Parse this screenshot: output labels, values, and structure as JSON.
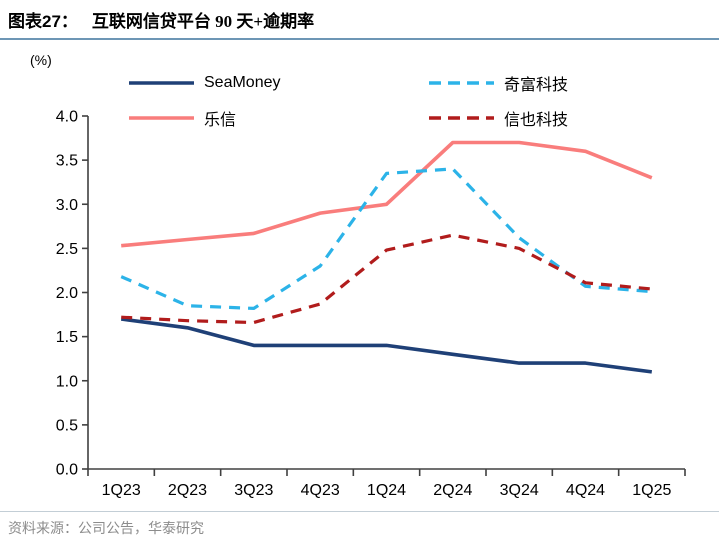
{
  "header": {
    "figure_label": "图表27：",
    "title": "互联网信贷平台 90 天+逾期率"
  },
  "chart_data": {
    "type": "line",
    "title": "互联网信贷平台 90 天+逾期率",
    "unit_label": "(%)",
    "xlabel": "",
    "ylabel": "(%)",
    "categories": [
      "1Q23",
      "2Q23",
      "3Q23",
      "4Q23",
      "1Q24",
      "2Q24",
      "3Q24",
      "4Q24",
      "1Q25"
    ],
    "series": [
      {
        "name": "SeaMoney",
        "color": "#1F4077",
        "dash": "solid",
        "values": [
          1.7,
          1.6,
          1.4,
          1.4,
          1.4,
          1.3,
          1.2,
          1.2,
          1.1
        ]
      },
      {
        "name": "乐信",
        "color": "#F97D7C",
        "dash": "solid",
        "values": [
          2.53,
          2.6,
          2.67,
          2.9,
          3.0,
          3.7,
          3.7,
          3.6,
          3.3
        ]
      },
      {
        "name": "奇富科技",
        "color": "#2CB3E8",
        "dash": "dashed",
        "values": [
          2.18,
          1.85,
          1.82,
          2.3,
          3.35,
          3.4,
          2.62,
          2.07,
          2.01
        ]
      },
      {
        "name": "信也科技",
        "color": "#B11C1C",
        "dash": "dashed",
        "values": [
          1.72,
          1.68,
          1.66,
          1.87,
          2.48,
          2.65,
          2.5,
          2.11,
          2.04
        ]
      }
    ],
    "ylim": [
      0.0,
      4.0
    ],
    "ytick_labels": [
      "0.0",
      "0.5",
      "1.0",
      "1.5",
      "2.0",
      "2.5",
      "3.0",
      "3.5",
      "4.0"
    ],
    "grid": false,
    "legend_position": "top"
  },
  "footer": {
    "source": "资料来源：公司公告，华泰研究"
  }
}
